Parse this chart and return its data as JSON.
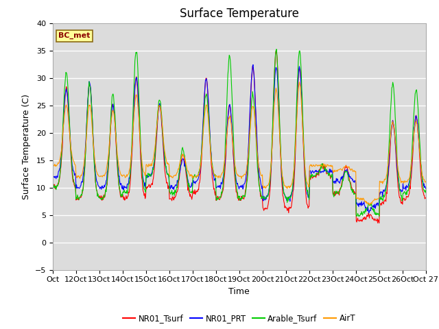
{
  "title": "Surface Temperature",
  "ylabel": "Surface Temperature (C)",
  "xlabel": "Time",
  "annotation": "BC_met",
  "ylim": [
    -5,
    40
  ],
  "yticks": [
    -5,
    0,
    5,
    10,
    15,
    20,
    25,
    30,
    35,
    40
  ],
  "legend_labels": [
    "NR01_Tsurf",
    "NR01_PRT",
    "Arable_Tsurf",
    "AirT"
  ],
  "legend_colors": [
    "#ff0000",
    "#0000ff",
    "#00cc00",
    "#ff9900"
  ],
  "plot_bg_color": "#dcdcdc",
  "title_fontsize": 12,
  "axis_fontsize": 9,
  "tick_fontsize": 8,
  "xtick_labels": [
    "Oct",
    "12Oct",
    "13Oct",
    "14Oct",
    "15Oct",
    "16Oct",
    "17Oct",
    "18Oct",
    "19Oct",
    "20Oct",
    "21Oct",
    "22Oct",
    "23Oct",
    "24Oct",
    "25Oct",
    "26Oct",
    "Oct 27"
  ]
}
